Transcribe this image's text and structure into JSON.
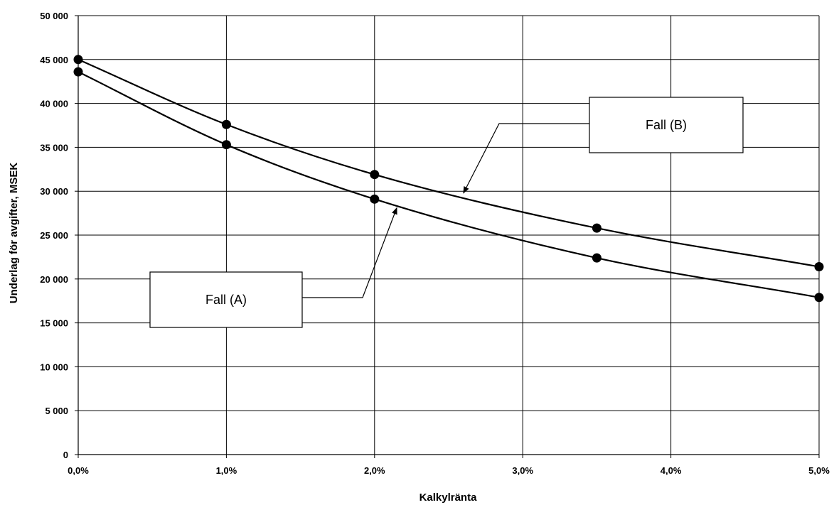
{
  "chart_data": {
    "type": "line",
    "xlabel": "Kalkylränta",
    "ylabel": "Underlag för avgifter, MSEK",
    "x_ticks": [
      "0,0%",
      "1,0%",
      "2,0%",
      "3,0%",
      "4,0%",
      "5,0%"
    ],
    "y_ticks": [
      "0",
      "5 000",
      "10 000",
      "15 000",
      "20 000",
      "25 000",
      "30 000",
      "35 000",
      "40 000",
      "45 000",
      "50 000"
    ],
    "xlim": [
      0,
      5
    ],
    "ylim": [
      0,
      50000
    ],
    "grid": true,
    "series": [
      {
        "name": "Fall (A)",
        "x": [
          0,
          1,
          2,
          3.5,
          5
        ],
        "y": [
          43600,
          35300,
          29100,
          22400,
          17900
        ]
      },
      {
        "name": "Fall (B)",
        "x": [
          0,
          1,
          2,
          3.5,
          5
        ],
        "y": [
          45000,
          37600,
          31900,
          25800,
          21400
        ]
      }
    ],
    "callouts": [
      {
        "label": "Fall (A)",
        "series": 0
      },
      {
        "label": "Fall (B)",
        "series": 1
      }
    ],
    "line_color": "#000000",
    "grid_color": "#000000"
  }
}
